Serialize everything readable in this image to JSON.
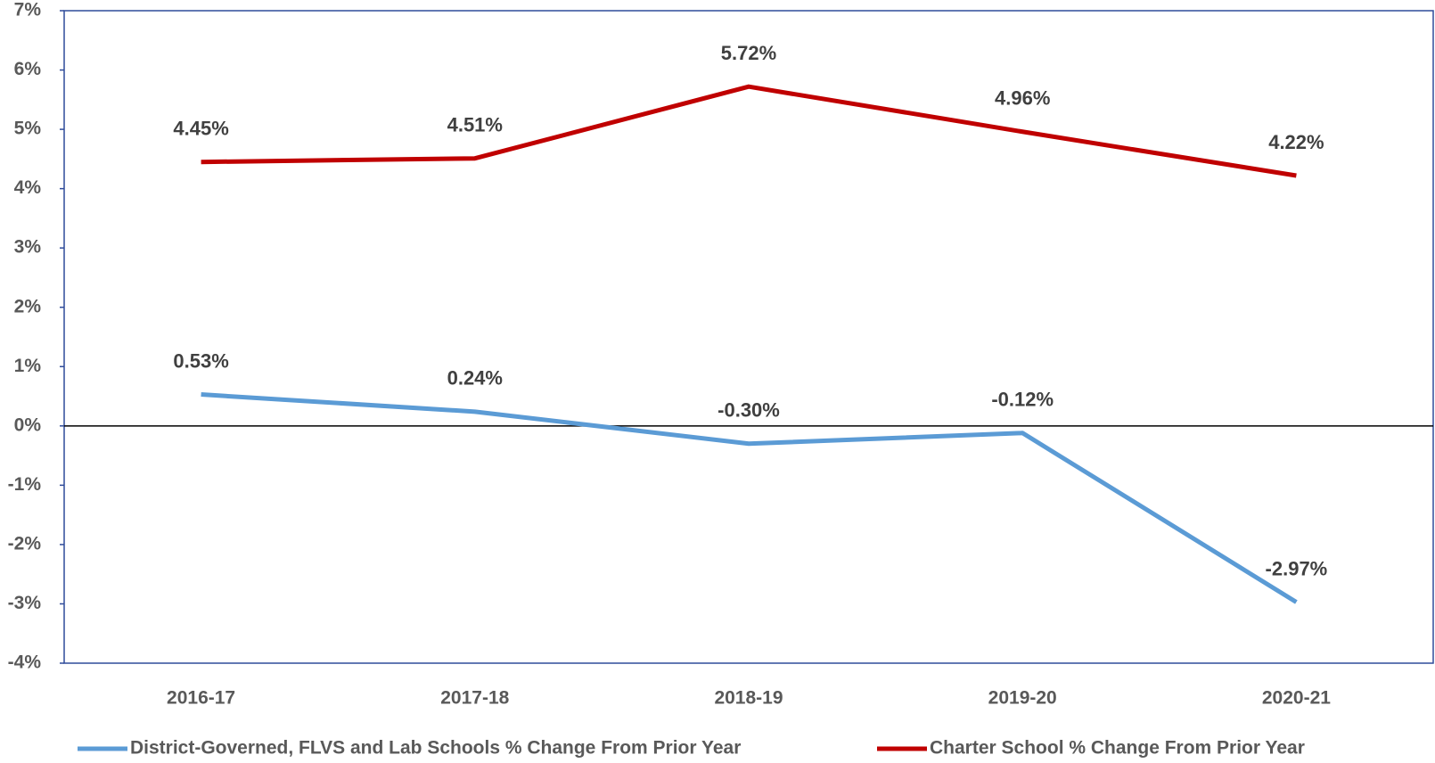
{
  "chart_data": {
    "type": "line",
    "categories": [
      "2016-17",
      "2017-18",
      "2018-19",
      "2019-20",
      "2020-21"
    ],
    "series": [
      {
        "name": "District-Governed, FLVS and Lab Schools % Change From Prior Year",
        "color": "#5b9bd5",
        "values": [
          0.53,
          0.24,
          -0.3,
          -0.12,
          -2.97
        ],
        "value_labels": [
          "0.53%",
          "0.24%",
          "-0.30%",
          "-0.12%",
          "-2.97%"
        ]
      },
      {
        "name": "Charter School % Change From Prior Year",
        "color": "#c00000",
        "values": [
          4.45,
          4.51,
          5.72,
          4.96,
          4.22
        ],
        "value_labels": [
          "4.45%",
          "4.51%",
          "5.72%",
          "4.96%",
          "4.22%"
        ]
      }
    ],
    "ylim": [
      -4,
      7
    ],
    "yticks": [
      {
        "value": -4,
        "label": "-4%"
      },
      {
        "value": -3,
        "label": "-3%"
      },
      {
        "value": -2,
        "label": "-2%"
      },
      {
        "value": -1,
        "label": "-1%"
      },
      {
        "value": 0,
        "label": "0%"
      },
      {
        "value": 1,
        "label": "1%"
      },
      {
        "value": 2,
        "label": "2%"
      },
      {
        "value": 3,
        "label": "3%"
      },
      {
        "value": 4,
        "label": "4%"
      },
      {
        "value": 5,
        "label": "5%"
      },
      {
        "value": 6,
        "label": "6%"
      },
      {
        "value": 7,
        "label": "7%"
      }
    ],
    "legend": "bottom"
  }
}
